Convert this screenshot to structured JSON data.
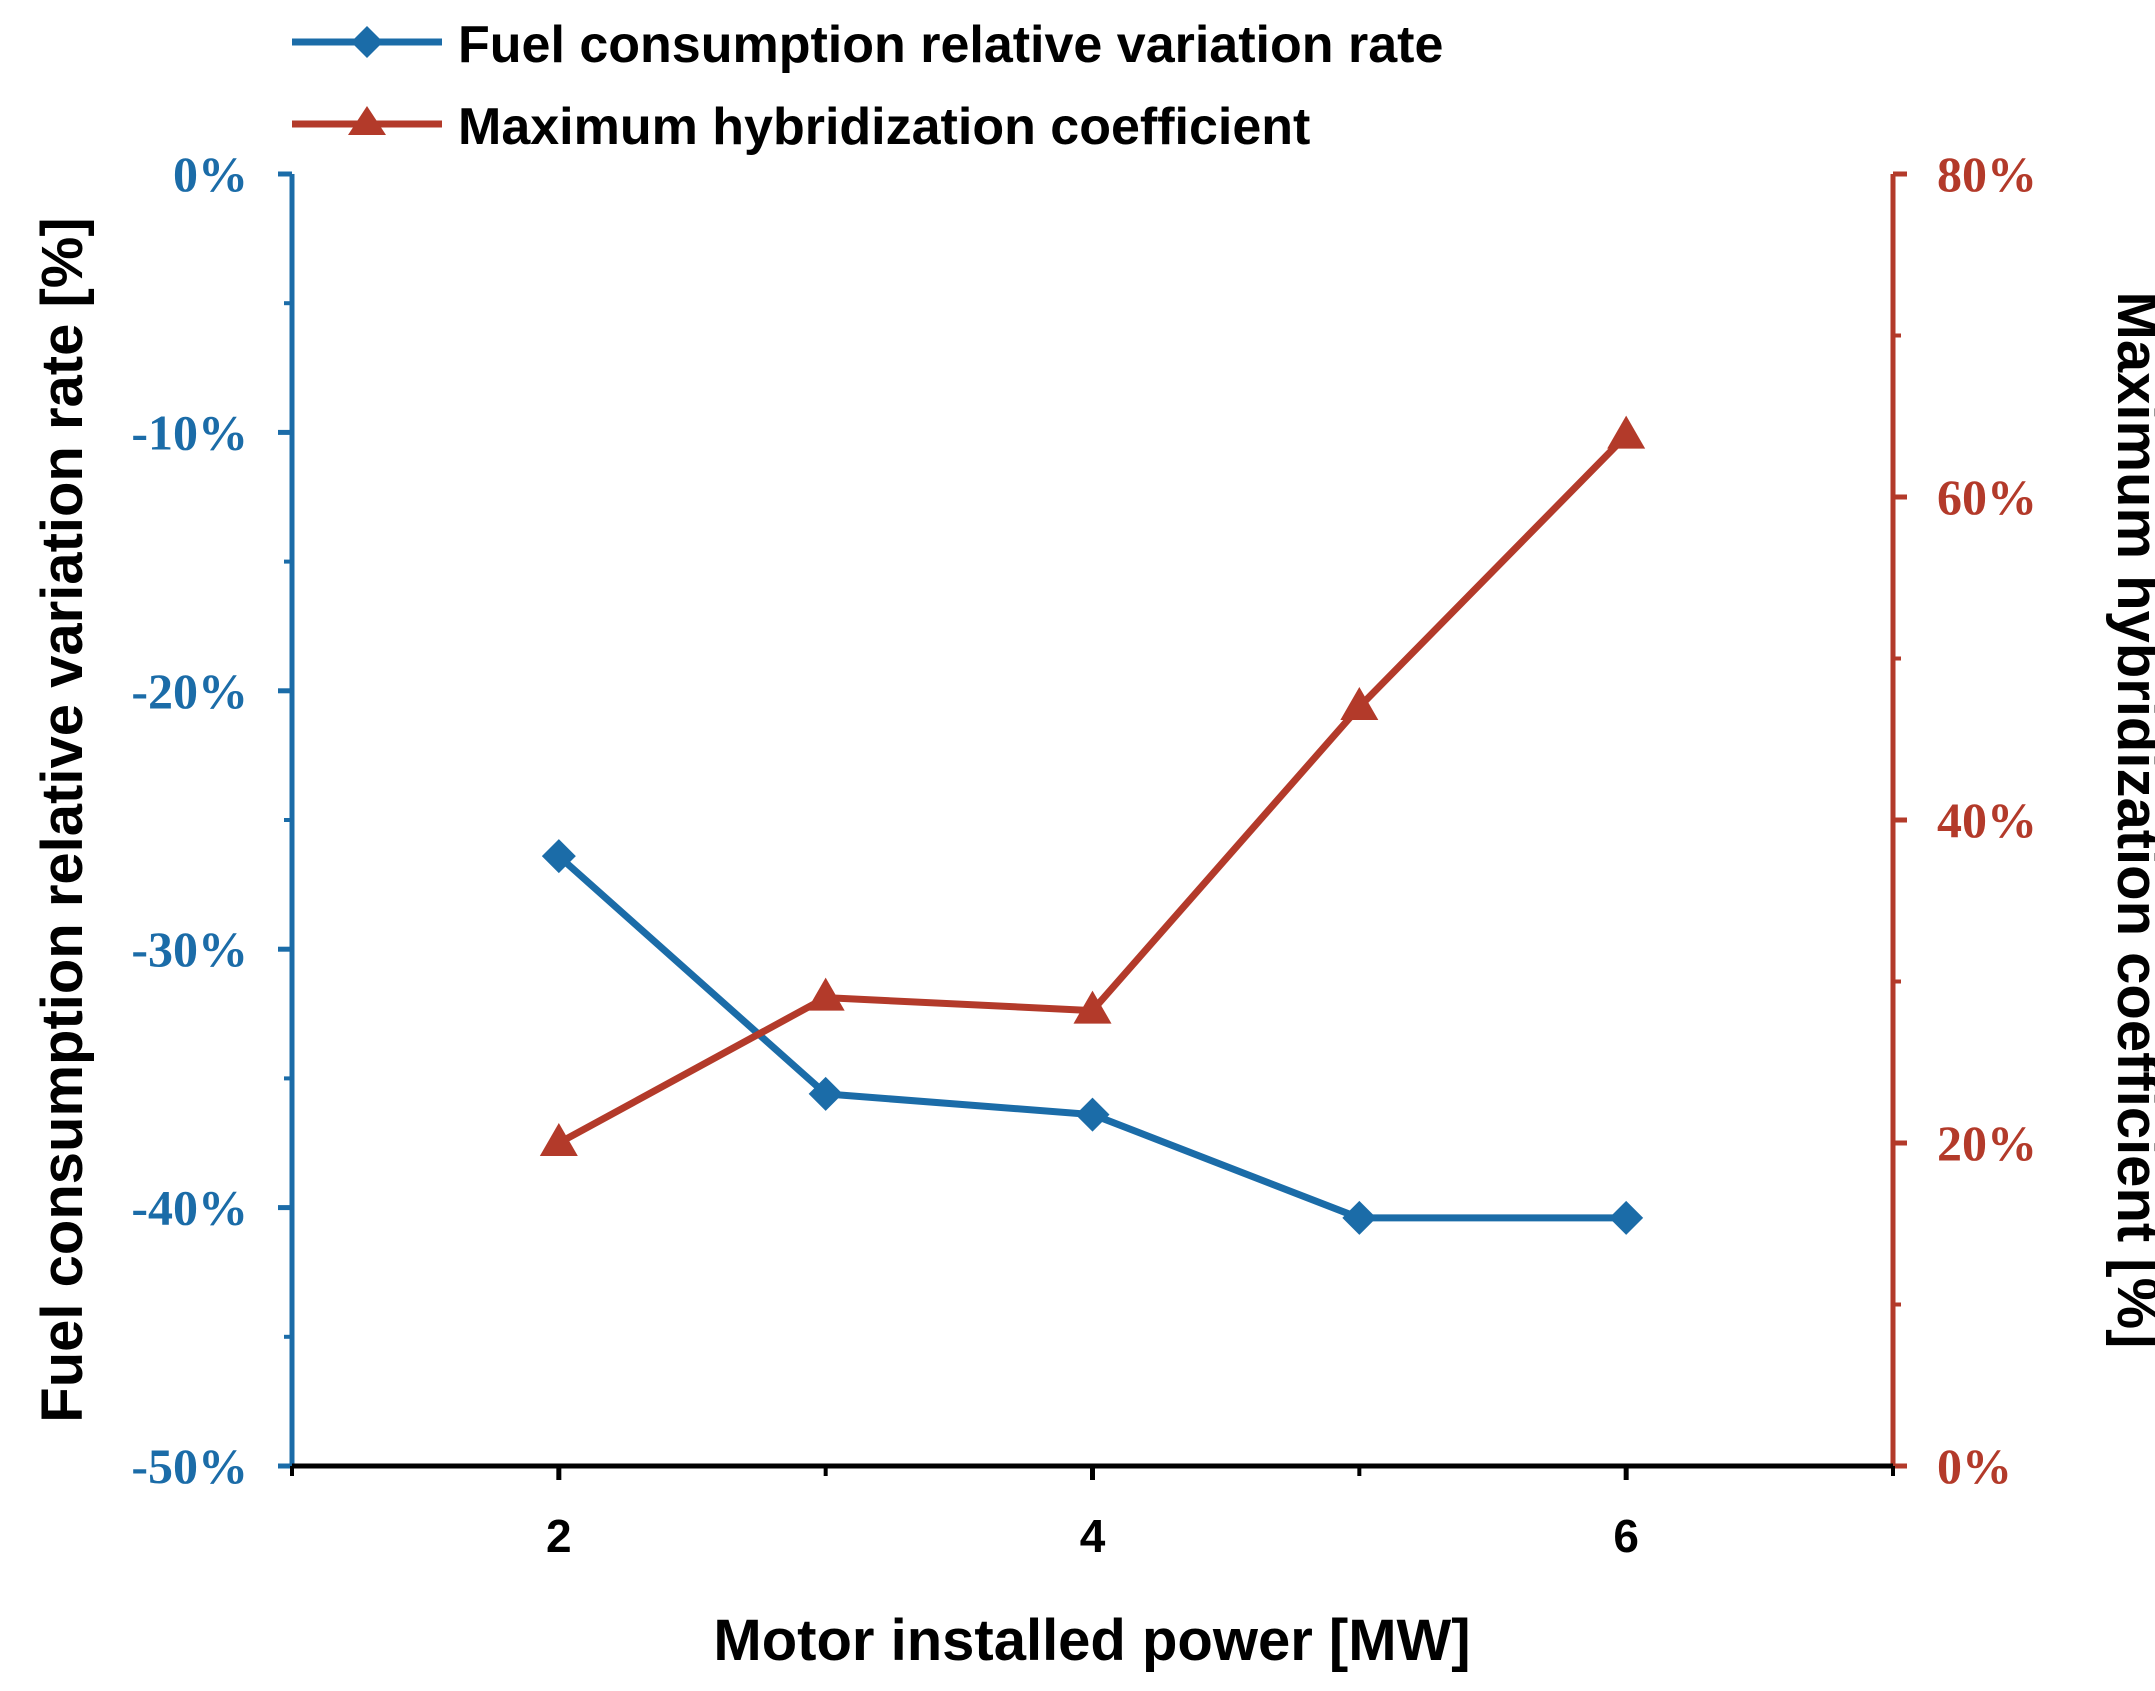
{
  "chart_data": {
    "type": "line",
    "xlabel": "Motor installed power [MW]",
    "ylabel_left": "Fuel consumption relative variation rate [%]",
    "ylabel_right": "Maximum hybridization coefficient [%]",
    "xlim": [
      1,
      7
    ],
    "ylim_left": [
      -50,
      0
    ],
    "ylim_right": [
      0,
      80
    ],
    "x_ticks": [
      2,
      4,
      6
    ],
    "x_tick_labels": [
      "2",
      "4",
      "6"
    ],
    "x_minor_ticks": [
      1,
      3,
      5,
      7
    ],
    "left_ticks": [
      0,
      -10,
      -20,
      -30,
      -40,
      -50
    ],
    "left_tick_labels": [
      "0%",
      "-10%",
      "-20%",
      "-30%",
      "-40%",
      "-50%"
    ],
    "left_minor_ticks": [
      -5,
      -15,
      -25,
      -35,
      -45
    ],
    "right_ticks": [
      80,
      60,
      40,
      20,
      0
    ],
    "right_tick_labels": [
      "80%",
      "60%",
      "40%",
      "20%",
      "0%"
    ],
    "right_minor_ticks": [
      70,
      50,
      30,
      10
    ],
    "grid": false,
    "legend_position": "top-left",
    "series": [
      {
        "name": "Fuel consumption relative variation rate",
        "axis": "left",
        "marker": "diamond",
        "color": "#1b6ca8",
        "x": [
          2,
          3,
          4,
          5,
          6
        ],
        "values": [
          -26.4,
          -35.6,
          -36.4,
          -40.4,
          -40.4
        ]
      },
      {
        "name": "Maximum hybridization coefficient",
        "axis": "right",
        "marker": "triangle",
        "color": "#b33a2a",
        "x": [
          2,
          3,
          4,
          5,
          6
        ],
        "values": [
          20.0,
          29.0,
          28.2,
          47.0,
          63.8
        ]
      }
    ],
    "colors": {
      "left_axis": "#1b6ca8",
      "right_axis": "#b33a2a",
      "bottom_axis": "#000000"
    }
  }
}
